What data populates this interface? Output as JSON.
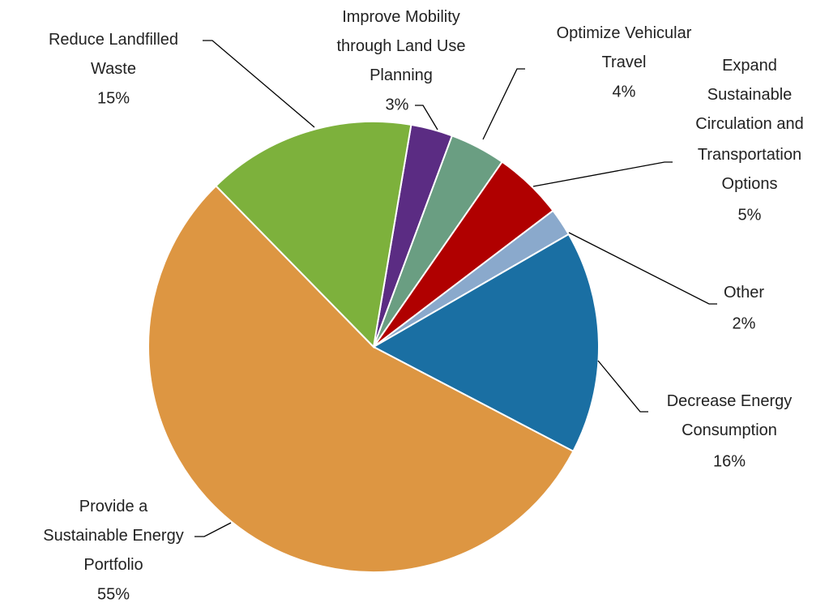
{
  "chart_data": {
    "type": "pie",
    "categories": [
      "Improve Mobility through Land Use Planning",
      "Optimize Vehicular Travel",
      "Expand Sustainable Circulation and Transportation Options",
      "Other",
      "Decrease Energy Consumption",
      "Provide a Sustainable Energy Portfolio",
      "Reduce Landfilled Waste"
    ],
    "values": [
      3,
      4,
      5,
      2,
      16,
      55,
      15
    ],
    "value_labels": [
      "3%",
      "4%",
      "5%",
      "2%",
      "16%",
      "55%",
      "15%"
    ],
    "colors": [
      "#5b2c83",
      "#6a9e82",
      "#b00000",
      "#8aa9cc",
      "#1a6fa3",
      "#dd9642",
      "#7db13c"
    ]
  }
}
